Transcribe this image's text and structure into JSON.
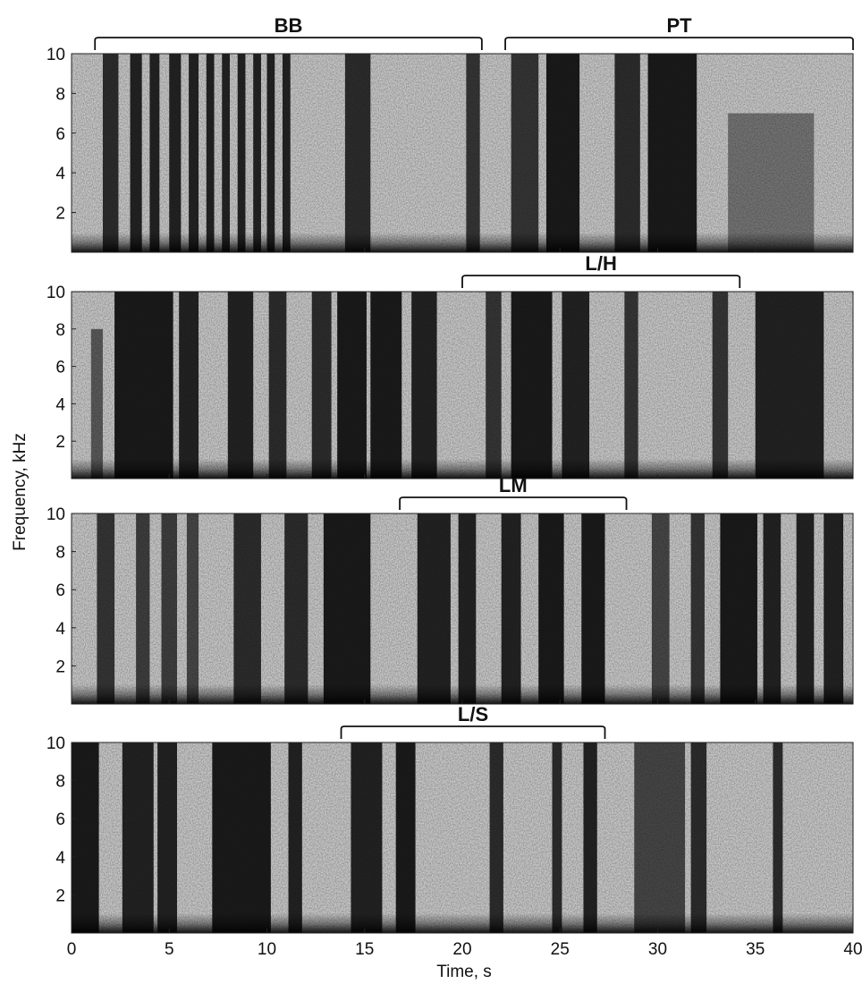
{
  "chart_data": {
    "type": "heatmap",
    "subtype": "spectrogram",
    "panel_count": 4,
    "ylabel": "Frequency, kHz",
    "xlabel": "Time, s",
    "xlim": [
      0,
      40
    ],
    "ylim": [
      0,
      10
    ],
    "x_ticks": [
      0,
      5,
      10,
      15,
      20,
      25,
      30,
      35,
      40
    ],
    "y_ticks": [
      2,
      4,
      6,
      8,
      10
    ],
    "colormap": "grayscale (dark = high energy)",
    "panels": [
      {
        "brackets": [
          {
            "label": "BB",
            "x_start": 1.2,
            "x_end": 21.0
          },
          {
            "label": "PT",
            "x_start": 22.2,
            "x_end": 40.0
          }
        ],
        "segments": [
          {
            "x0": 1.6,
            "x1": 2.4,
            "f_top": 10,
            "intensity": 0.85
          },
          {
            "x0": 3.0,
            "x1": 3.6,
            "f_top": 10,
            "intensity": 0.9
          },
          {
            "x0": 4.0,
            "x1": 4.5,
            "f_top": 10,
            "intensity": 0.9
          },
          {
            "x0": 5.0,
            "x1": 5.6,
            "f_top": 10,
            "intensity": 0.9
          },
          {
            "x0": 6.0,
            "x1": 6.5,
            "f_top": 10,
            "intensity": 0.9
          },
          {
            "x0": 6.9,
            "x1": 7.3,
            "f_top": 10,
            "intensity": 0.9
          },
          {
            "x0": 7.7,
            "x1": 8.1,
            "f_top": 10,
            "intensity": 0.9
          },
          {
            "x0": 8.5,
            "x1": 8.9,
            "f_top": 10,
            "intensity": 0.9
          },
          {
            "x0": 9.3,
            "x1": 9.7,
            "f_top": 10,
            "intensity": 0.9
          },
          {
            "x0": 10.0,
            "x1": 10.4,
            "f_top": 10,
            "intensity": 0.9
          },
          {
            "x0": 10.8,
            "x1": 11.2,
            "f_top": 10,
            "intensity": 0.9
          },
          {
            "x0": 14.0,
            "x1": 15.3,
            "f_top": 10,
            "intensity": 0.85
          },
          {
            "x0": 20.2,
            "x1": 20.9,
            "f_top": 10,
            "intensity": 0.8
          },
          {
            "x0": 22.5,
            "x1": 23.9,
            "f_top": 10,
            "intensity": 0.8
          },
          {
            "x0": 24.3,
            "x1": 26.0,
            "f_top": 10,
            "intensity": 0.95
          },
          {
            "x0": 27.8,
            "x1": 29.1,
            "f_top": 10,
            "intensity": 0.85
          },
          {
            "x0": 29.5,
            "x1": 32.0,
            "f_top": 10,
            "intensity": 0.95
          },
          {
            "x0": 33.6,
            "x1": 38.0,
            "f_top": 7,
            "intensity": 0.45
          }
        ]
      },
      {
        "brackets": [
          {
            "label": "L/H",
            "x_start": 20.0,
            "x_end": 34.2
          }
        ],
        "segments": [
          {
            "x0": 1.0,
            "x1": 1.6,
            "f_top": 8,
            "intensity": 0.6
          },
          {
            "x0": 2.2,
            "x1": 5.2,
            "f_top": 10,
            "intensity": 0.95
          },
          {
            "x0": 5.5,
            "x1": 6.5,
            "f_top": 10,
            "intensity": 0.9
          },
          {
            "x0": 8.0,
            "x1": 9.3,
            "f_top": 10,
            "intensity": 0.9
          },
          {
            "x0": 10.1,
            "x1": 11.0,
            "f_top": 10,
            "intensity": 0.85
          },
          {
            "x0": 12.3,
            "x1": 13.3,
            "f_top": 10,
            "intensity": 0.85
          },
          {
            "x0": 13.6,
            "x1": 15.1,
            "f_top": 10,
            "intensity": 0.95
          },
          {
            "x0": 15.3,
            "x1": 16.9,
            "f_top": 10,
            "intensity": 0.95
          },
          {
            "x0": 17.4,
            "x1": 18.7,
            "f_top": 10,
            "intensity": 0.9
          },
          {
            "x0": 21.2,
            "x1": 22.0,
            "f_top": 10,
            "intensity": 0.8
          },
          {
            "x0": 22.5,
            "x1": 24.6,
            "f_top": 10,
            "intensity": 0.95
          },
          {
            "x0": 25.1,
            "x1": 26.5,
            "f_top": 10,
            "intensity": 0.9
          },
          {
            "x0": 28.3,
            "x1": 29.0,
            "f_top": 10,
            "intensity": 0.8
          },
          {
            "x0": 32.8,
            "x1": 33.6,
            "f_top": 10,
            "intensity": 0.8
          },
          {
            "x0": 35.0,
            "x1": 38.5,
            "f_top": 10,
            "intensity": 0.9
          }
        ]
      },
      {
        "brackets": [
          {
            "label": "LM",
            "x_start": 16.8,
            "x_end": 28.4
          }
        ],
        "segments": [
          {
            "x0": 1.3,
            "x1": 2.2,
            "f_top": 10,
            "intensity": 0.8
          },
          {
            "x0": 3.3,
            "x1": 4.0,
            "f_top": 10,
            "intensity": 0.75
          },
          {
            "x0": 4.6,
            "x1": 5.4,
            "f_top": 10,
            "intensity": 0.75
          },
          {
            "x0": 5.9,
            "x1": 6.5,
            "f_top": 10,
            "intensity": 0.7
          },
          {
            "x0": 8.3,
            "x1": 9.7,
            "f_top": 10,
            "intensity": 0.85
          },
          {
            "x0": 10.9,
            "x1": 12.1,
            "f_top": 10,
            "intensity": 0.85
          },
          {
            "x0": 12.9,
            "x1": 15.3,
            "f_top": 10,
            "intensity": 0.95
          },
          {
            "x0": 17.7,
            "x1": 19.4,
            "f_top": 10,
            "intensity": 0.9
          },
          {
            "x0": 19.8,
            "x1": 20.7,
            "f_top": 10,
            "intensity": 0.9
          },
          {
            "x0": 22.0,
            "x1": 23.0,
            "f_top": 10,
            "intensity": 0.9
          },
          {
            "x0": 23.9,
            "x1": 25.2,
            "f_top": 10,
            "intensity": 0.95
          },
          {
            "x0": 26.1,
            "x1": 27.3,
            "f_top": 10,
            "intensity": 0.95
          },
          {
            "x0": 29.7,
            "x1": 30.6,
            "f_top": 10,
            "intensity": 0.7
          },
          {
            "x0": 31.7,
            "x1": 32.4,
            "f_top": 10,
            "intensity": 0.8
          },
          {
            "x0": 33.2,
            "x1": 35.1,
            "f_top": 10,
            "intensity": 0.95
          },
          {
            "x0": 35.4,
            "x1": 36.3,
            "f_top": 10,
            "intensity": 0.9
          },
          {
            "x0": 37.1,
            "x1": 38.0,
            "f_top": 10,
            "intensity": 0.9
          },
          {
            "x0": 38.5,
            "x1": 39.5,
            "f_top": 10,
            "intensity": 0.9
          }
        ]
      },
      {
        "brackets": [
          {
            "label": "L/S",
            "x_start": 13.8,
            "x_end": 27.3
          }
        ],
        "segments": [
          {
            "x0": 0.0,
            "x1": 1.4,
            "f_top": 10,
            "intensity": 0.95
          },
          {
            "x0": 2.6,
            "x1": 4.2,
            "f_top": 10,
            "intensity": 0.9
          },
          {
            "x0": 4.4,
            "x1": 5.4,
            "f_top": 10,
            "intensity": 0.9
          },
          {
            "x0": 7.2,
            "x1": 10.2,
            "f_top": 10,
            "intensity": 0.95
          },
          {
            "x0": 11.1,
            "x1": 11.8,
            "f_top": 10,
            "intensity": 0.9
          },
          {
            "x0": 14.3,
            "x1": 15.9,
            "f_top": 10,
            "intensity": 0.9
          },
          {
            "x0": 16.6,
            "x1": 17.6,
            "f_top": 10,
            "intensity": 0.95
          },
          {
            "x0": 21.4,
            "x1": 22.1,
            "f_top": 10,
            "intensity": 0.85
          },
          {
            "x0": 24.6,
            "x1": 25.1,
            "f_top": 10,
            "intensity": 0.85
          },
          {
            "x0": 26.2,
            "x1": 26.9,
            "f_top": 10,
            "intensity": 0.9
          },
          {
            "x0": 28.8,
            "x1": 31.4,
            "f_top": 10,
            "intensity": 0.7
          },
          {
            "x0": 31.7,
            "x1": 32.5,
            "f_top": 10,
            "intensity": 0.85
          },
          {
            "x0": 35.9,
            "x1": 36.4,
            "f_top": 10,
            "intensity": 0.85
          }
        ]
      }
    ]
  }
}
